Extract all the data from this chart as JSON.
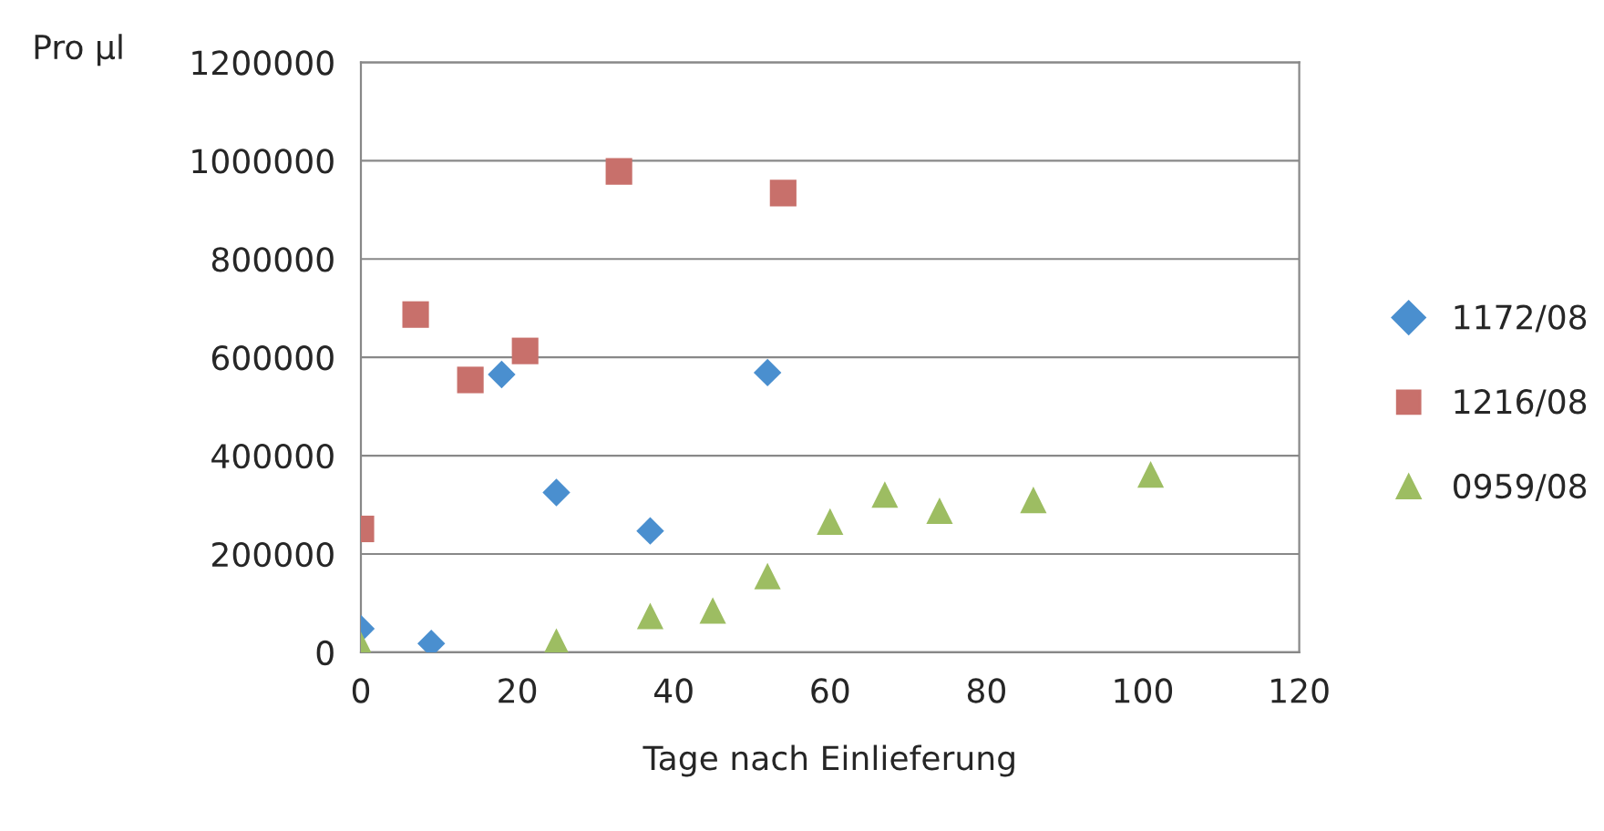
{
  "chart_data": {
    "type": "scatter",
    "xlabel": "Tage nach Einlieferung",
    "ylabel": "Pro µl",
    "xlim": [
      0,
      120
    ],
    "xticks": [
      0,
      20,
      40,
      60,
      80,
      100,
      120
    ],
    "ylim": [
      0,
      1200000
    ],
    "yticks": [
      0,
      200000,
      400000,
      600000,
      800000,
      1000000,
      1200000
    ],
    "grid": "y",
    "legend": "right",
    "series": [
      {
        "name": "1172/08",
        "color": "#4a8fcf",
        "marker": "diamond",
        "x": [
          0,
          9,
          18,
          25,
          37,
          52
        ],
        "values": [
          48000,
          18000,
          565000,
          325000,
          247000,
          569000
        ]
      },
      {
        "name": "1216/08",
        "color": "#c8706b",
        "marker": "square",
        "x": [
          0,
          7,
          14,
          21,
          33,
          54
        ],
        "values": [
          251000,
          687000,
          554000,
          613000,
          978000,
          934000
        ]
      },
      {
        "name": "0959/08",
        "color": "#9dbd62",
        "marker": "triangle",
        "x": [
          0,
          25,
          37,
          45,
          52,
          60,
          67,
          74,
          86,
          101
        ],
        "values": [
          15000,
          22000,
          74000,
          85000,
          155000,
          266000,
          321000,
          288000,
          310000,
          362000
        ]
      }
    ]
  }
}
